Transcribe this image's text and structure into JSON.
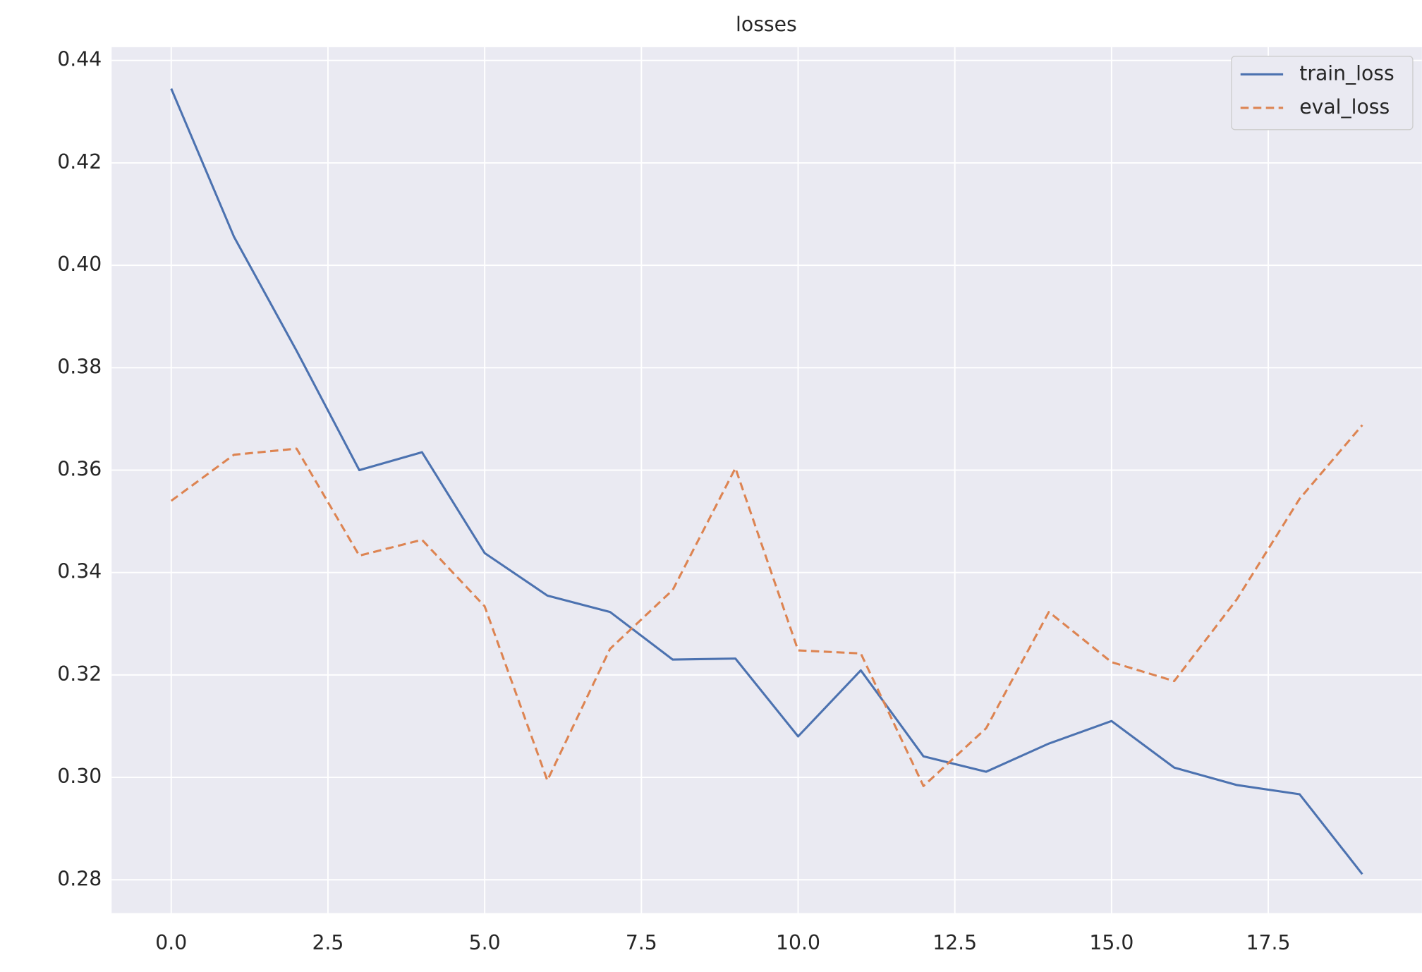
{
  "chart_data": {
    "type": "line",
    "title": "losses",
    "x": [
      0,
      1,
      2,
      3,
      4,
      5,
      6,
      7,
      8,
      9,
      10,
      11,
      12,
      13,
      14,
      15,
      16,
      17,
      18,
      19
    ],
    "series": [
      {
        "name": "train_loss",
        "color": "#4c72b0",
        "dash": "solid",
        "values": [
          0.4345,
          0.4056,
          0.3833,
          0.36,
          0.3635,
          0.3438,
          0.3355,
          0.3323,
          0.323,
          0.3232,
          0.308,
          0.3209,
          0.3041,
          0.3011,
          0.3066,
          0.311,
          0.3019,
          0.2985,
          0.2967,
          0.2811
        ]
      },
      {
        "name": "eval_loss",
        "color": "#dd8452",
        "dash": "dashed",
        "values": [
          0.354,
          0.363,
          0.3642,
          0.3433,
          0.3464,
          0.3334,
          0.2994,
          0.3251,
          0.3366,
          0.3604,
          0.3248,
          0.3242,
          0.2983,
          0.3096,
          0.3323,
          0.3225,
          0.3188,
          0.3348,
          0.3544,
          0.3688
        ]
      }
    ],
    "xlim": [
      -0.95,
      19.95
    ],
    "xticks": [
      {
        "value": 0,
        "label": "0.0"
      },
      {
        "value": 2.5,
        "label": "2.5"
      },
      {
        "value": 5,
        "label": "5.0"
      },
      {
        "value": 7.5,
        "label": "7.5"
      },
      {
        "value": 10,
        "label": "10.0"
      },
      {
        "value": 12.5,
        "label": "12.5"
      },
      {
        "value": 15,
        "label": "15.0"
      },
      {
        "value": 17.5,
        "label": "17.5"
      }
    ],
    "ylim": [
      0.2735,
      0.4426
    ],
    "yticks": [
      0.28,
      {
        "value": 0.3,
        "label": "0.30"
      },
      0.32,
      0.34,
      0.36,
      0.38,
      {
        "value": 0.4,
        "label": "0.40"
      },
      0.42,
      0.44
    ],
    "grid": true,
    "legend": "upper right"
  }
}
